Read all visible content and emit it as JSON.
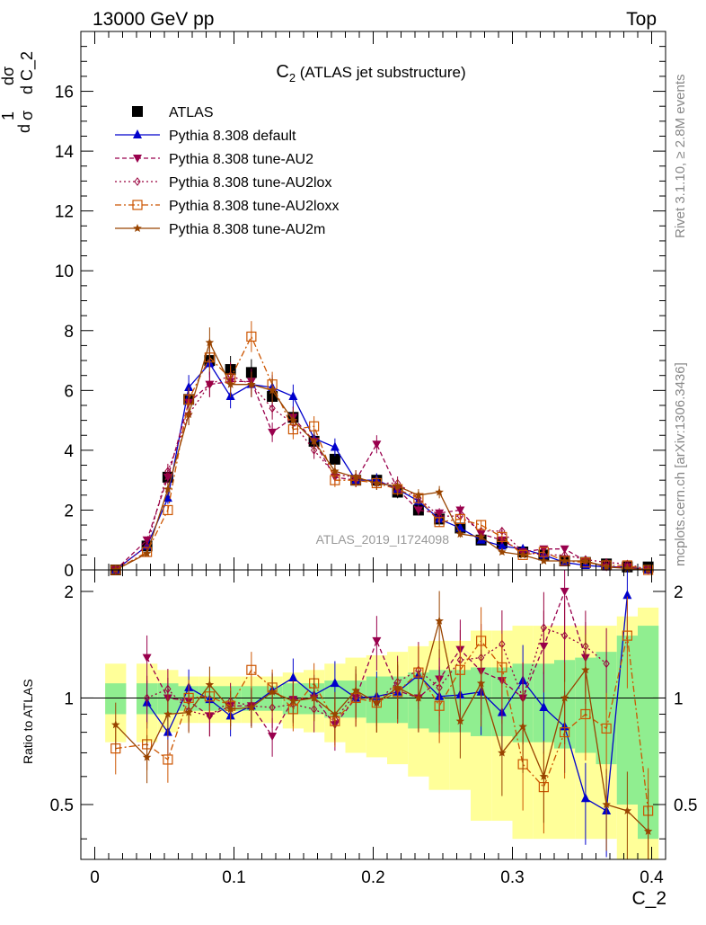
{
  "header": {
    "left": "13000 GeV pp",
    "right": "Top",
    "plot_title_main": "C",
    "plot_title_sub": "2",
    "plot_title_rest": " (ATLAS jet substructure)",
    "analysis_id": "ATLAS_2019_I1724098",
    "side_text_top": "Rivet 3.1.10, ≥ 2.8M events",
    "side_text_bottom": "mcplots.cern.ch [arXiv:1306.3436]"
  },
  "colors": {
    "band_inner": "#90ee90",
    "band_outer": "#ffff99",
    "atlas": "#000000",
    "default": "#0000cc",
    "au2": "#99004d",
    "au2lox": "#99003d",
    "au2loxx": "#cc5500",
    "au2m": "#994400"
  },
  "chart_data": [
    {
      "type": "scatter",
      "name": "main",
      "title": "C2 (ATLAS jet substructure)",
      "ylabel": "1/σ dσ/dC_2",
      "xlabel": "C_2",
      "xlim": [
        -0.01,
        0.41
      ],
      "ylim": [
        0,
        18
      ],
      "xticks": [
        "0",
        "0.1",
        "0.2",
        "0.3",
        "0.4"
      ],
      "yticks": [
        "0",
        "2",
        "4",
        "6",
        "8",
        "10",
        "12",
        "14",
        "16"
      ],
      "x": [
        0.015,
        0.0375,
        0.0525,
        0.0675,
        0.0825,
        0.0975,
        0.1125,
        0.1275,
        0.1425,
        0.1575,
        0.1725,
        0.1875,
        0.2025,
        0.2175,
        0.2325,
        0.2475,
        0.2625,
        0.2775,
        0.2925,
        0.3075,
        0.3225,
        0.3375,
        0.3525,
        0.3675,
        0.3825,
        0.3975
      ],
      "legend": [
        "ATLAS",
        "Pythia 8.308 default",
        "Pythia 8.308 tune-AU2",
        "Pythia 8.308 tune-AU2lox",
        "Pythia 8.308 tune-AU2loxx",
        "Pythia 8.308 tune-AU2m"
      ],
      "series": [
        {
          "name": "ATLAS",
          "values": [
            0.0,
            0.8,
            3.1,
            5.7,
            7.0,
            6.7,
            6.6,
            5.8,
            5.1,
            4.3,
            3.7,
            3.0,
            3.0,
            2.6,
            2.0,
            1.7,
            1.4,
            1.0,
            0.9,
            0.6,
            0.5,
            0.3,
            0.25,
            0.2,
            0.1,
            0.1
          ]
        },
        {
          "name": "Pythia 8.308 default",
          "values": [
            0.0,
            0.8,
            2.4,
            6.1,
            6.9,
            5.8,
            6.2,
            6.1,
            5.8,
            4.4,
            4.1,
            3.0,
            3.0,
            2.7,
            2.3,
            1.7,
            1.4,
            1.0,
            0.8,
            0.7,
            0.5,
            0.25,
            0.15,
            0.1,
            0.1,
            0.0
          ]
        },
        {
          "name": "Pythia 8.308 tune-AU2",
          "values": [
            0.0,
            1.0,
            3.1,
            5.6,
            6.2,
            6.3,
            6.3,
            4.6,
            5.1,
            4.3,
            3.1,
            3.0,
            4.2,
            2.7,
            2.0,
            1.9,
            2.0,
            1.2,
            1.0,
            0.6,
            0.7,
            0.7,
            0.3,
            0.1,
            0.1,
            0.0
          ]
        },
        {
          "name": "Pythia 8.308 tune-AU2lox",
          "values": [
            0.0,
            0.8,
            3.3,
            5.2,
            6.2,
            6.5,
            6.2,
            5.4,
            4.9,
            4.0,
            3.2,
            3.1,
            2.9,
            2.9,
            2.4,
            1.8,
            1.8,
            1.3,
            1.3,
            0.6,
            0.5,
            0.5,
            0.35,
            0.25,
            0.2,
            0.0
          ]
        },
        {
          "name": "Pythia 8.308 tune-AU2loxx",
          "values": [
            0.0,
            0.6,
            2.0,
            5.7,
            7.1,
            6.4,
            7.8,
            6.2,
            4.7,
            4.8,
            3.0,
            3.0,
            2.9,
            2.7,
            2.4,
            1.6,
            1.7,
            1.5,
            1.1,
            0.5,
            0.6,
            0.3,
            0.25,
            0.15,
            0.15,
            0.0
          ]
        },
        {
          "name": "Pythia 8.308 tune-AU2m",
          "values": [
            0.0,
            0.55,
            2.7,
            5.2,
            7.6,
            6.2,
            6.2,
            6.0,
            5.0,
            4.3,
            3.3,
            3.1,
            2.9,
            2.8,
            2.5,
            2.6,
            1.2,
            1.1,
            0.6,
            0.5,
            0.3,
            0.3,
            0.3,
            0.1,
            0.05,
            0.0
          ]
        }
      ]
    },
    {
      "type": "scatter",
      "name": "ratio",
      "ylabel": "Ratio to ATLAS",
      "xlabel": "C_2",
      "xlim": [
        -0.01,
        0.41
      ],
      "ylim": [
        0.35,
        2.3
      ],
      "yticks": [
        "0.5",
        "1",
        "2"
      ],
      "x": [
        0.015,
        0.0375,
        0.0525,
        0.0675,
        0.0825,
        0.0975,
        0.1125,
        0.1275,
        0.1425,
        0.1575,
        0.1725,
        0.1875,
        0.2025,
        0.2175,
        0.2325,
        0.2475,
        0.2625,
        0.2775,
        0.2925,
        0.3075,
        0.3225,
        0.3375,
        0.3525,
        0.3675,
        0.3825,
        0.3975
      ],
      "band_inner": [
        0.1,
        0.1,
        0.1,
        0.08,
        0.08,
        0.08,
        0.08,
        0.08,
        0.1,
        0.1,
        0.12,
        0.12,
        0.15,
        0.15,
        0.18,
        0.2,
        0.2,
        0.22,
        0.22,
        0.25,
        0.25,
        0.28,
        0.3,
        0.35,
        0.5,
        0.6
      ],
      "band_outer": [
        0.25,
        0.25,
        0.2,
        0.15,
        0.15,
        0.15,
        0.15,
        0.15,
        0.18,
        0.2,
        0.25,
        0.3,
        0.32,
        0.35,
        0.4,
        0.45,
        0.45,
        0.55,
        0.55,
        0.6,
        0.6,
        0.6,
        0.6,
        0.6,
        0.7,
        0.8
      ],
      "series": [
        {
          "name": "Pythia 8.308 default",
          "values": [
            null,
            0.97,
            0.8,
            1.07,
            0.99,
            0.89,
            0.95,
            1.05,
            1.14,
            1.02,
            1.1,
            1.0,
            1.01,
            1.04,
            1.16,
            1.01,
            1.02,
            1.04,
            0.91,
            1.12,
            0.94,
            0.83,
            0.52,
            0.48,
            1.95,
            null
          ]
        },
        {
          "name": "Pythia 8.308 tune-AU2",
          "values": [
            null,
            1.3,
            1.0,
            0.98,
            0.89,
            0.95,
            0.95,
            0.78,
            0.99,
            1.0,
            0.84,
            1.0,
            1.45,
            1.05,
            1.0,
            1.13,
            1.37,
            1.19,
            1.12,
            1.0,
            1.4,
            2.0,
            1.3,
            null,
            null,
            null
          ]
        },
        {
          "name": "Pythia 8.308 tune-AU2lox",
          "values": [
            null,
            1.0,
            1.06,
            0.92,
            0.89,
            0.98,
            0.95,
            0.94,
            0.96,
            0.93,
            0.87,
            1.03,
            0.97,
            1.11,
            1.2,
            1.07,
            1.28,
            1.3,
            1.42,
            1.0,
            1.58,
            1.5,
            1.4,
            1.25,
            null,
            null
          ]
        },
        {
          "name": "Pythia 8.308 tune-AU2loxx",
          "values": [
            0.72,
            0.74,
            0.67,
            1.0,
            1.01,
            0.95,
            1.2,
            1.07,
            0.93,
            1.1,
            0.86,
            1.0,
            0.97,
            1.04,
            1.18,
            0.95,
            1.2,
            1.45,
            1.22,
            0.65,
            0.56,
            0.8,
            0.9,
            0.82,
            1.5,
            0.48
          ]
        },
        {
          "name": "Pythia 8.308 tune-AU2m",
          "values": [
            0.84,
            0.68,
            0.9,
            0.91,
            1.09,
            0.93,
            0.94,
            1.04,
            0.98,
            1.0,
            0.9,
            1.05,
            0.97,
            1.07,
            1.0,
            1.65,
            0.86,
            1.1,
            0.7,
            0.83,
            0.6,
            1.0,
            1.2,
            0.5,
            0.48,
            0.42
          ]
        }
      ]
    }
  ]
}
